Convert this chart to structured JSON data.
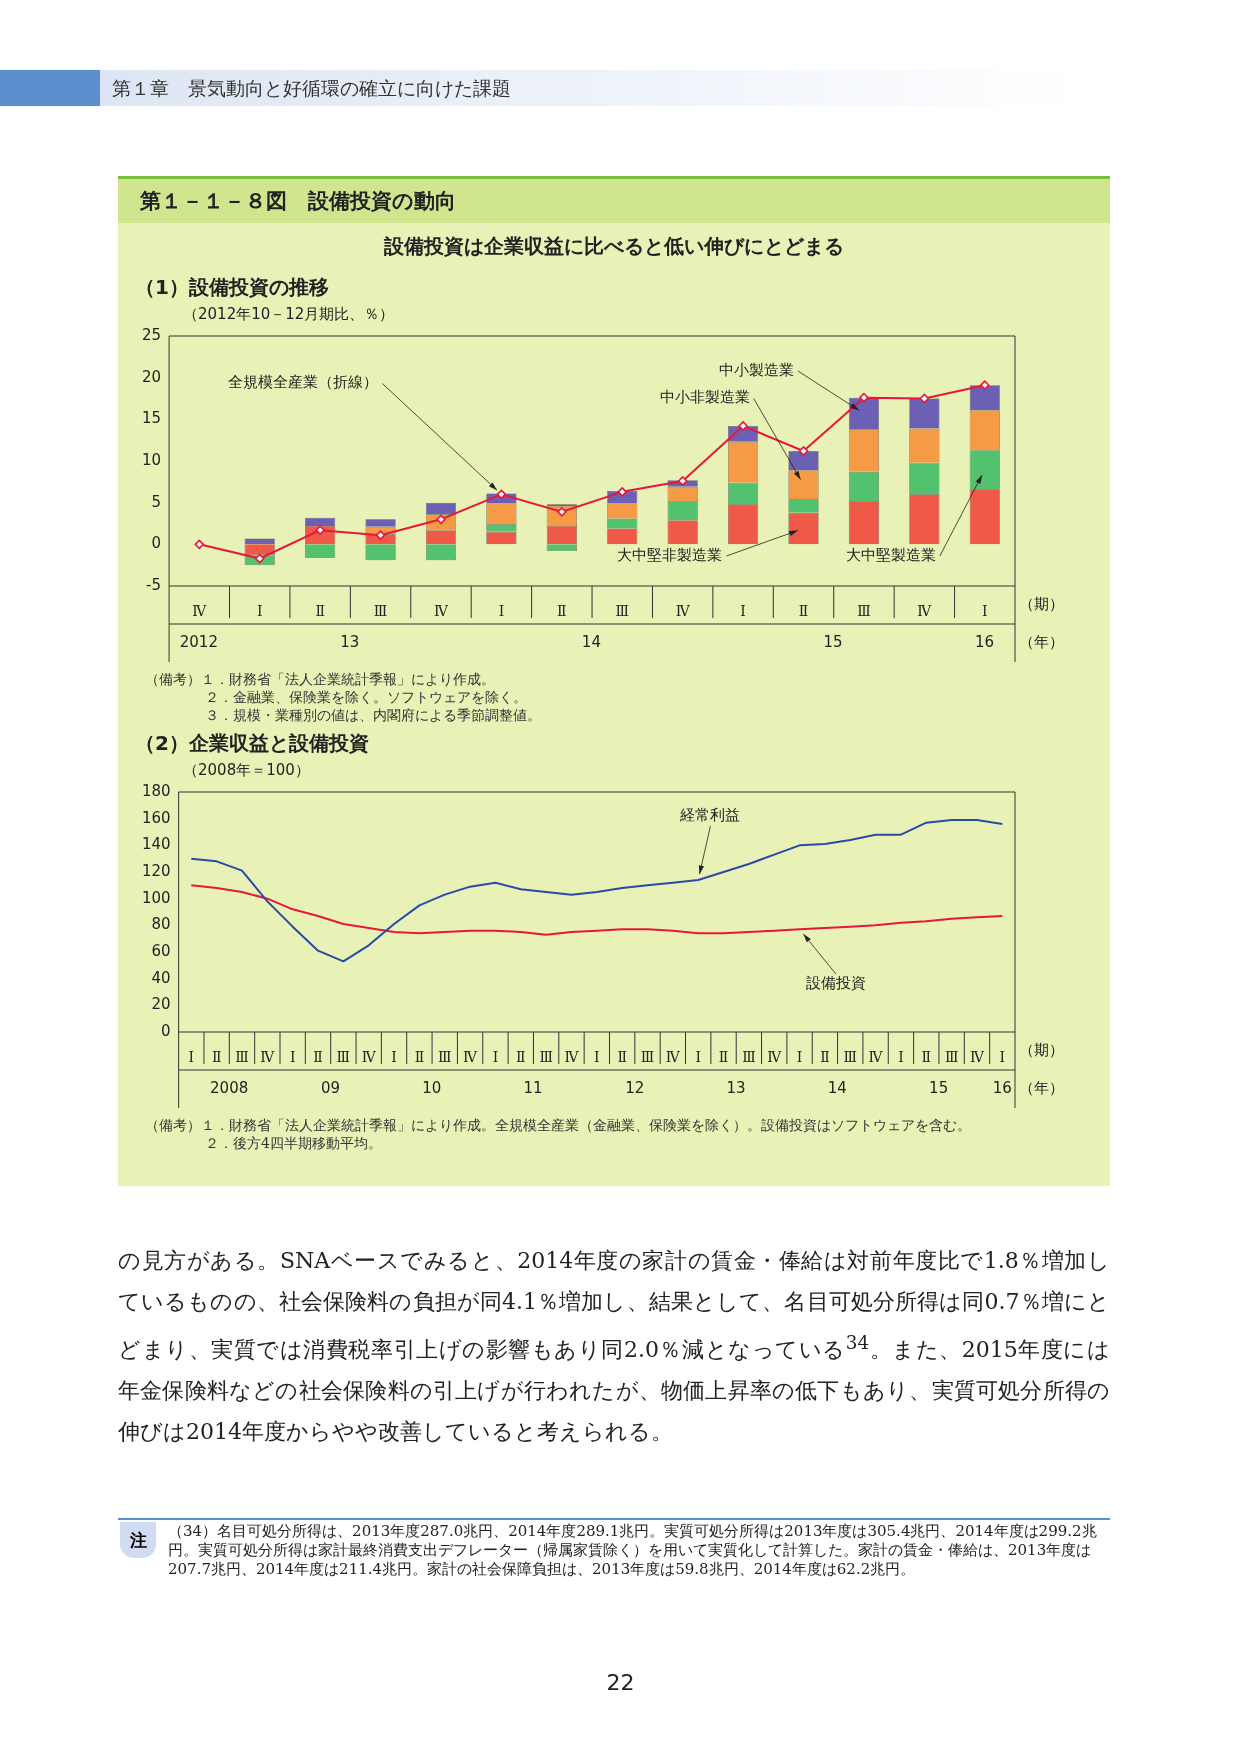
{
  "chart_data": [
    {
      "type": "other",
      "title": "第１－１－８図　設備投資の動向",
      "subtitle": "設備投資は企業収益に比べると低い伸びにとどまる",
      "annotations": [
        "第１章　景気動向と好循環の確立に向けた課題"
      ]
    },
    {
      "type": "bar",
      "stacked": true,
      "title": "（1）設備投資の推移",
      "ylabel": "（2012年10－12月期比、％）",
      "xlabel": "（期）",
      "x2label": "（年）",
      "categories": [
        "Ⅳ",
        "Ⅰ",
        "Ⅱ",
        "Ⅲ",
        "Ⅳ",
        "Ⅰ",
        "Ⅱ",
        "Ⅲ",
        "Ⅳ",
        "Ⅰ",
        "Ⅱ",
        "Ⅲ",
        "Ⅳ",
        "Ⅰ"
      ],
      "x2lim": [
        "2012-10-01",
        "2016-04-01"
      ],
      "x2ticks": [
        {
          "value": "2012-11-15",
          "label": "2012"
        },
        {
          "value": "2013-07-01",
          "label": "13"
        },
        {
          "value": "2014-07-01",
          "label": "14"
        },
        {
          "value": "2015-07-01",
          "label": "15"
        },
        {
          "value": "2016-02-15",
          "label": "16"
        }
      ],
      "ylim": [
        -5,
        25
      ],
      "yticks": [
        -5,
        0,
        5,
        10,
        15,
        20,
        25
      ],
      "series": [
        {
          "name": "大中堅非製造業",
          "color": "#ee5a47",
          "values": [
            0,
            -1.3,
            2.2,
            1.2,
            1.7,
            1.5,
            2.2,
            1.9,
            2.9,
            4.8,
            3.8,
            5.2,
            6.0,
            6.6
          ]
        },
        {
          "name": "大中堅製造業",
          "color": "#52c26e",
          "values": [
            0,
            -1.2,
            -1.6,
            -1.9,
            -1.9,
            0.9,
            -0.8,
            1.2,
            2.3,
            2.6,
            1.6,
            3.5,
            3.8,
            4.7
          ]
        },
        {
          "name": "中小非製造業",
          "color": "#f59a45",
          "values": [
            0,
            0,
            null,
            0.9,
            1.9,
            2.5,
            2.4,
            1.8,
            1.7,
            4.9,
            3.5,
            5.1,
            4.1,
            4.8
          ]
        },
        {
          "name": "中小製造業",
          "color": "#6c60b4",
          "values": [
            0,
            0.7,
            1.0,
            0.9,
            1.4,
            1.2,
            0.2,
            1.5,
            0.8,
            1.9,
            2.3,
            3.8,
            3.6,
            3.0
          ]
        },
        {
          "name": "全規模全産業（折線）",
          "type": "line",
          "marker": "diamond",
          "color": "#e8173a",
          "values": [
            0,
            -1.7,
            1.7,
            1.1,
            3.0,
            6.0,
            3.9,
            6.3,
            7.6,
            14.2,
            11.2,
            17.6,
            17.5,
            19.1
          ]
        }
      ],
      "annotations": [
        "（備考）１．財務省「法人企業統計季報」により作成。",
        "２．金融業、保険業を除く。ソフトウェアを除く。",
        "３．規模・業種別の値は、内閣府による季節調整値。"
      ]
    },
    {
      "type": "line",
      "title": "（2）企業収益と設備投資",
      "ylabel": "（2008年＝100）",
      "xlabel": "（期）",
      "x2label": "（年）",
      "categories": [
        "Ⅰ",
        "Ⅱ",
        "Ⅲ",
        "Ⅳ",
        "Ⅰ",
        "Ⅱ",
        "Ⅲ",
        "Ⅳ",
        "Ⅰ",
        "Ⅱ",
        "Ⅲ",
        "Ⅳ",
        "Ⅰ",
        "Ⅱ",
        "Ⅲ",
        "Ⅳ",
        "Ⅰ",
        "Ⅱ",
        "Ⅲ",
        "Ⅳ",
        "Ⅰ",
        "Ⅱ",
        "Ⅲ",
        "Ⅳ",
        "Ⅰ",
        "Ⅱ",
        "Ⅲ",
        "Ⅳ",
        "Ⅰ",
        "Ⅱ",
        "Ⅲ",
        "Ⅳ",
        "Ⅰ"
      ],
      "x2lim": [
        "2008-01-01",
        "2016-04-01"
      ],
      "x2ticks": [
        {
          "value": "2008-07-01",
          "label": "2008"
        },
        {
          "value": "2009-07-01",
          "label": "09"
        },
        {
          "value": "2010-07-01",
          "label": "10"
        },
        {
          "value": "2011-07-01",
          "label": "11"
        },
        {
          "value": "2012-07-01",
          "label": "12"
        },
        {
          "value": "2013-07-01",
          "label": "13"
        },
        {
          "value": "2014-07-01",
          "label": "14"
        },
        {
          "value": "2015-07-01",
          "label": "15"
        },
        {
          "value": "2016-02-15",
          "label": "16"
        }
      ],
      "ylim": [
        0,
        180
      ],
      "yticks": [
        0,
        20,
        40,
        60,
        80,
        100,
        120,
        140,
        160,
        180
      ],
      "series": [
        {
          "name": "経常利益",
          "color": "#2a4aa8",
          "values": [
            130,
            128,
            121,
            98,
            79,
            61,
            53,
            65,
            81,
            95,
            103,
            109,
            112,
            107,
            105,
            103,
            105,
            108,
            110,
            112,
            114,
            120,
            126,
            133,
            140,
            141,
            144,
            148,
            148,
            157,
            159,
            159,
            156
          ]
        },
        {
          "name": "設備投資",
          "color": "#e8173a",
          "values": [
            110,
            108,
            105,
            100,
            92,
            87,
            81,
            78,
            75,
            74,
            75,
            76,
            76,
            75,
            73,
            75,
            76,
            77,
            77,
            76,
            74,
            74,
            75,
            76,
            77,
            78,
            79,
            80,
            82,
            83,
            85,
            86,
            87
          ]
        }
      ],
      "annotations": [
        "（備考）１．財務省「法人企業統計季報」により作成。全規模全産業（金融業、保険業を除く）。設備投資はソフトウェアを含む。",
        "２．後方4四半期移動平均。"
      ]
    },
    {
      "type": "other",
      "annotations": [
        "の見方がある。SNAベースでみると、2014年度の家計の賃金・俸給は対前年度比で1.8％増加しているものの、社会保険料の負担が同4.1％増加し、結果として、名目可処分所得は同0.7％増にとどまり、実質では消費税率引上げの影響もあり同2.0％減となっている$^{34}$。また、2015年度には年金保険料などの社会保険料の引上げが行われたが、物価上昇率の低下もあり、実質可処分所得の伸びは2014年度からやや改善していると考えられる。",
        "注",
        "（34）名目可処分所得は、2013年度287.0兆円、2014年度289.1兆円。実質可処分所得は2013年度は305.4兆円、2014年度は299.2兆円。実質可処分所得は家計最終消費支出デフレーター（帰属家賃除く）を用いて実質化して計算した。家計の賃金・俸給は、2013年度は207.7兆円、2014年度は211.4兆円。家計の社会保障負担は、2013年度は59.8兆円、2014年度は62.2兆円。",
        "22"
      ]
    }
  ]
}
